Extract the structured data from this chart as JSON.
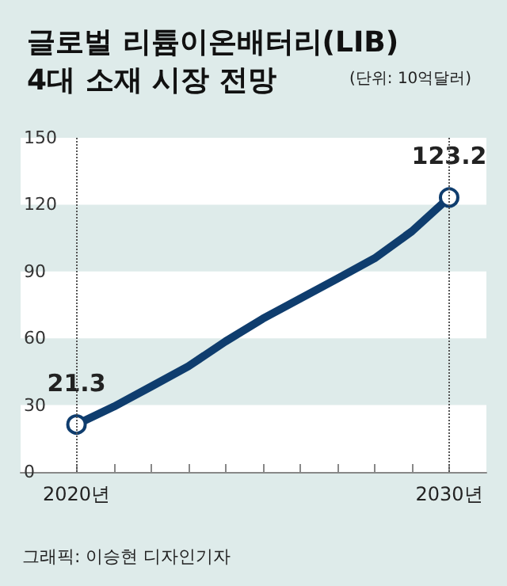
{
  "chart_data": {
    "type": "line",
    "title": "글로벌 리튬이온배터리(LIB)\n4대 소재 시장 전망",
    "subtitle": "(단위: 10억달러)",
    "x": [
      2020,
      2021,
      2022,
      2023,
      2024,
      2025,
      2026,
      2027,
      2028,
      2029,
      2030
    ],
    "series": [
      {
        "color": "#0f3d6e",
        "marker": "none",
        "values": [
          21.3,
          29.3,
          38.3,
          47.4,
          58.6,
          68.8,
          77.8,
          86.8,
          95.9,
          108,
          123.2
        ]
      },
      {
        "type": "scatter",
        "color": "#0f3d6e",
        "x": [
          2020,
          2030
        ],
        "values": [
          21.3,
          123.2
        ],
        "value_labels": [
          "21.3",
          "123.2"
        ]
      }
    ],
    "xlim": [
      2018.5,
      2031
    ],
    "xticks": [
      {
        "value": 2020,
        "label": "2020년"
      },
      {
        "value": 2021,
        "label": null
      },
      {
        "value": 2022,
        "label": null
      },
      {
        "value": 2023,
        "label": null
      },
      {
        "value": 2024,
        "label": null
      },
      {
        "value": 2025,
        "label": null
      },
      {
        "value": 2026,
        "label": null
      },
      {
        "value": 2027,
        "label": null
      },
      {
        "value": 2028,
        "label": null
      },
      {
        "value": 2029,
        "label": null
      },
      {
        "value": 2030,
        "label": "2030년"
      }
    ],
    "ylim": [
      0,
      150
    ],
    "yticks": [
      0,
      30,
      60,
      90,
      120,
      150
    ],
    "bands": [
      {
        "axis": "y",
        "from": 0,
        "to": 30,
        "color": "#ffffff"
      },
      {
        "axis": "y",
        "from": 60,
        "to": 90,
        "color": "#ffffff"
      },
      {
        "axis": "y",
        "from": 120,
        "to": 150,
        "color": "#ffffff"
      }
    ],
    "marker": "circle",
    "line_style": "solid",
    "ref_lines": [
      {
        "axis": "x",
        "value": 2020,
        "line_style": "dotted"
      },
      {
        "axis": "x",
        "value": 2030,
        "line_style": "dotted"
      }
    ],
    "annotations": [
      "그래픽: 이승현 디자인기자"
    ]
  }
}
